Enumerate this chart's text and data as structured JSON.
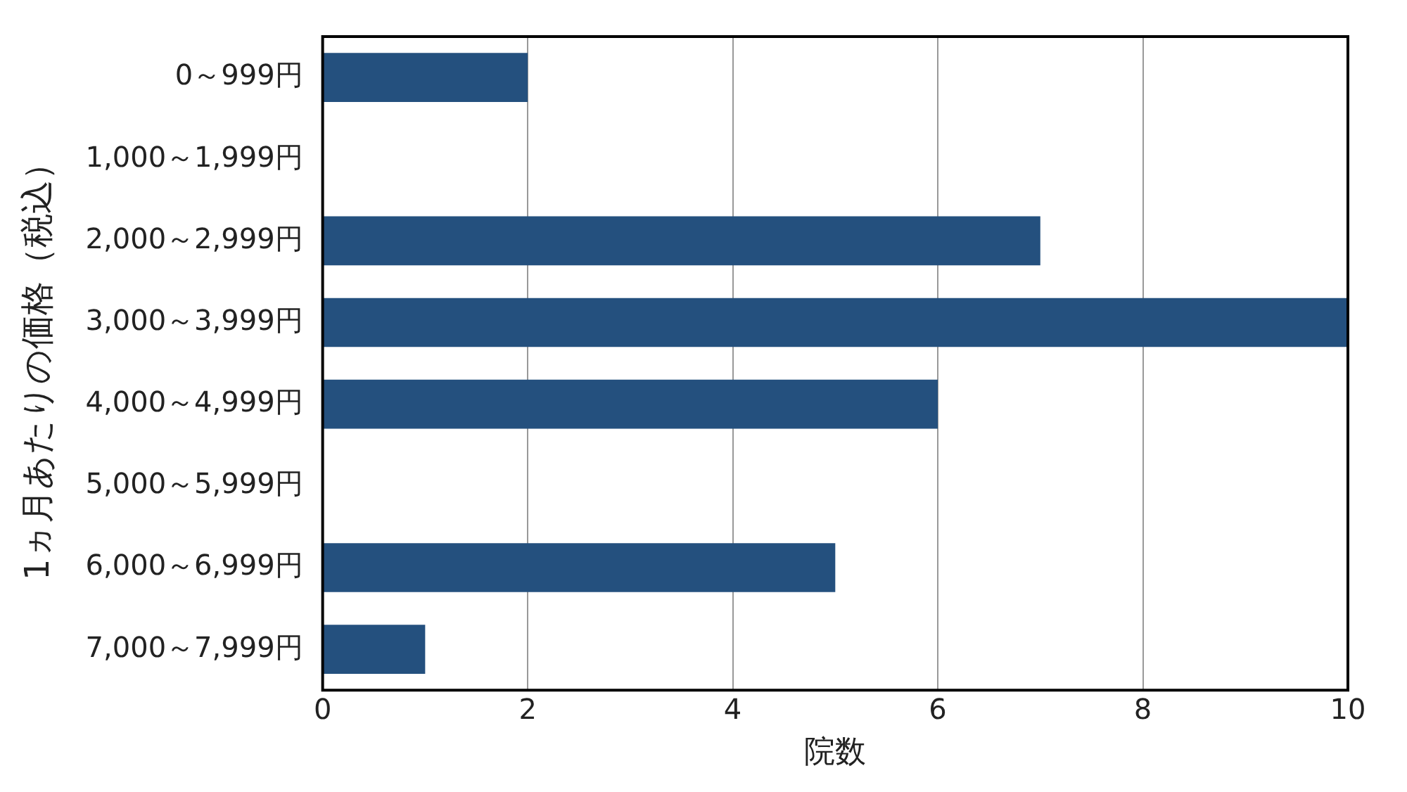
{
  "chart_data": {
    "type": "bar",
    "orientation": "horizontal",
    "xlabel": "院数",
    "ylabel": "1ヵ月あたりの価格（税込）",
    "categories": [
      "0～999円",
      "1,000～1,999円",
      "2,000～2,999円",
      "3,000～3,999円",
      "4,000～4,999円",
      "5,000～5,999円",
      "6,000～6,999円",
      "7,000～7,999円"
    ],
    "values": [
      2,
      0,
      7,
      10,
      6,
      0,
      5,
      1
    ],
    "color": "#24507e",
    "xlim": [
      0,
      10
    ],
    "xticks": [
      0,
      2,
      4,
      6,
      8,
      10
    ],
    "grid": "x",
    "legend": false
  }
}
